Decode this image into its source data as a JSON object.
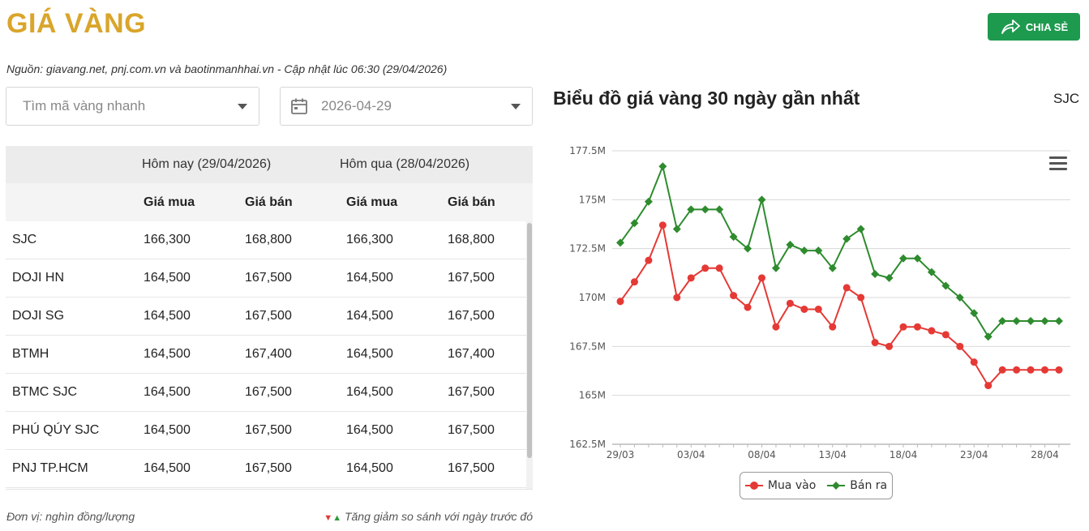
{
  "header": {
    "title": "GIÁ VÀNG",
    "share_label": "CHIA SẺ"
  },
  "source_note": "Nguồn: giavang.net, pnj.com.vn và baotinmanhhai.vn - Cập nhật lúc 06:30 (29/04/2026)",
  "filters": {
    "quick_search_placeholder": "Tìm mã vàng nhanh",
    "date_value": "2026-04-29"
  },
  "table": {
    "today_label": "Hôm nay (29/04/2026)",
    "yesterday_label": "Hôm qua (28/04/2026)",
    "buy_label": "Giá mua",
    "sell_label": "Giá bán",
    "rows": [
      {
        "name": "SJC",
        "today_buy": "166,300",
        "today_sell": "168,800",
        "yest_buy": "166,300",
        "yest_sell": "168,800"
      },
      {
        "name": "DOJI HN",
        "today_buy": "164,500",
        "today_sell": "167,500",
        "yest_buy": "164,500",
        "yest_sell": "167,500"
      },
      {
        "name": "DOJI SG",
        "today_buy": "164,500",
        "today_sell": "167,500",
        "yest_buy": "164,500",
        "yest_sell": "167,500"
      },
      {
        "name": "BTMH",
        "today_buy": "164,500",
        "today_sell": "167,400",
        "yest_buy": "164,500",
        "yest_sell": "167,400"
      },
      {
        "name": "BTMC SJC",
        "today_buy": "164,500",
        "today_sell": "167,500",
        "yest_buy": "164,500",
        "yest_sell": "167,500"
      },
      {
        "name": "PHÚ QÚY SJC",
        "today_buy": "164,500",
        "today_sell": "167,500",
        "yest_buy": "164,500",
        "yest_sell": "167,500"
      },
      {
        "name": "PNJ TP.HCM",
        "today_buy": "164,500",
        "today_sell": "167,500",
        "yest_buy": "164,500",
        "yest_sell": "167,500"
      }
    ]
  },
  "footer": {
    "unit_note": "Đơn vị: nghìn đồng/lượng",
    "change_note": "Tăng giảm so sánh với ngày trước đó"
  },
  "chart_panel": {
    "title": "Biểu đồ giá vàng 30 ngày gần nhất",
    "code": "SJC"
  },
  "colors": {
    "brand": "#d9a52b",
    "share": "#1e9a4f",
    "buy": "#e53935",
    "sell": "#2e8b2e"
  },
  "chart_data": {
    "type": "line",
    "title": "",
    "xlabel": "",
    "ylabel": "",
    "x": [
      "29/03",
      "30/03",
      "31/03",
      "01/04",
      "02/04",
      "03/04",
      "04/04",
      "05/04",
      "06/04",
      "07/04",
      "08/04",
      "09/04",
      "10/04",
      "11/04",
      "12/04",
      "13/04",
      "14/04",
      "15/04",
      "16/04",
      "17/04",
      "18/04",
      "19/04",
      "20/04",
      "21/04",
      "22/04",
      "23/04",
      "24/04",
      "25/04",
      "26/04",
      "27/04",
      "28/04",
      "29/04"
    ],
    "x_tick_labels": [
      "29/03",
      "03/04",
      "08/04",
      "13/04",
      "18/04",
      "23/04",
      "28/04"
    ],
    "y_tick_labels": [
      "162.5M",
      "165M",
      "167.5M",
      "170M",
      "172.5M",
      "175M",
      "177.5M"
    ],
    "ylim": [
      162.5,
      177.5
    ],
    "grid": true,
    "legend_position": "bottom-center",
    "series": [
      {
        "name": "Mua vào",
        "color": "#e53935",
        "marker": "circle",
        "values": [
          169.8,
          170.8,
          171.9,
          173.7,
          170.0,
          171.0,
          171.5,
          171.5,
          170.1,
          169.5,
          171.0,
          168.5,
          169.7,
          169.4,
          169.4,
          168.5,
          170.5,
          170.0,
          167.7,
          167.5,
          168.5,
          168.5,
          168.3,
          168.1,
          167.5,
          166.7,
          165.5,
          166.3,
          166.3,
          166.3,
          166.3,
          166.3
        ]
      },
      {
        "name": "Bán ra",
        "color": "#2e8b2e",
        "marker": "diamond",
        "values": [
          172.8,
          173.8,
          174.9,
          176.7,
          173.5,
          174.5,
          174.5,
          174.5,
          173.1,
          172.5,
          175.0,
          171.5,
          172.7,
          172.4,
          172.4,
          171.5,
          173.0,
          173.5,
          171.2,
          171.0,
          172.0,
          172.0,
          171.3,
          170.6,
          170.0,
          169.2,
          168.0,
          168.8,
          168.8,
          168.8,
          168.8,
          168.8
        ]
      }
    ]
  }
}
